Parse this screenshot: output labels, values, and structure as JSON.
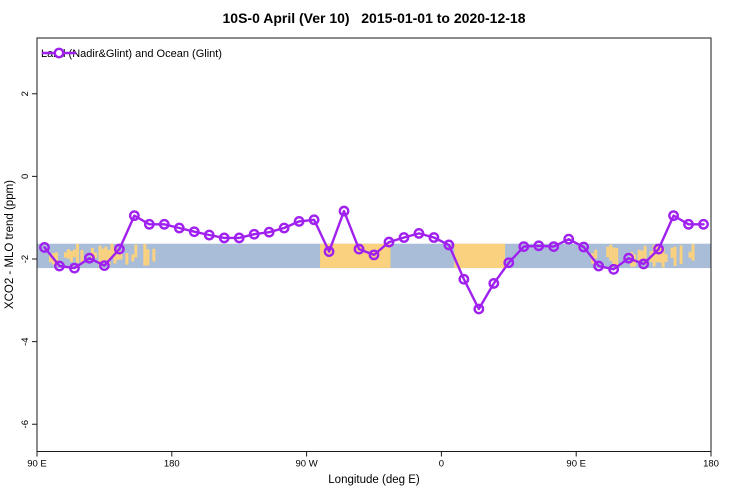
{
  "title": "10S-0 April (Ver 10)   2015-01-01 to 2020-12-18",
  "legend": {
    "label": "Land (Nadir&Glint) and Ocean (Glint)"
  },
  "chart_data": {
    "type": "line",
    "title": "10S-0 April (Ver 10)   2015-01-01 to 2020-12-18",
    "xlabel": "Longitude (deg E)",
    "ylabel": "XCO2 - MLO trend (ppm)",
    "xlim": [
      90,
      540
    ],
    "ylim": [
      -6.66,
      3.35
    ],
    "grid": false,
    "legend_position": "top-left",
    "x_ticks": [
      {
        "value": 90,
        "label": "90 E"
      },
      {
        "value": 180,
        "label": "180"
      },
      {
        "value": 270,
        "label": "90 W"
      },
      {
        "value": 360,
        "label": "0"
      },
      {
        "value": 450,
        "label": "90 E"
      },
      {
        "value": 540,
        "label": "180"
      }
    ],
    "y_ticks": [
      {
        "value": 2,
        "label": "2"
      },
      {
        "value": 0,
        "label": "0"
      },
      {
        "value": -2,
        "label": "-2"
      },
      {
        "value": -4,
        "label": "-4"
      },
      {
        "value": -6,
        "label": "-6"
      }
    ],
    "x": [
      95,
      105,
      115,
      125,
      135,
      145,
      155,
      165,
      175,
      185,
      195,
      205,
      215,
      225,
      235,
      245,
      255,
      265,
      275,
      285,
      295,
      305,
      315,
      325,
      335,
      345,
      355,
      365,
      375,
      385,
      395,
      405,
      415,
      425,
      435,
      445,
      455,
      465,
      475,
      485,
      495,
      505,
      515,
      525,
      535
    ],
    "series": [
      {
        "name": "Land (Nadir&Glint) and Ocean (Glint)",
        "color": "#A020F0",
        "marker": "open-circle",
        "values": [
          -1.72,
          -2.17,
          -2.22,
          -1.98,
          -2.16,
          -1.76,
          -0.95,
          -1.16,
          -1.16,
          -1.25,
          -1.34,
          -1.42,
          -1.49,
          -1.49,
          -1.4,
          -1.35,
          -1.25,
          -1.09,
          -1.05,
          -1.82,
          -0.84,
          -1.76,
          -1.9,
          -1.59,
          -1.48,
          -1.38,
          -1.48,
          -1.66,
          -2.49,
          -3.21,
          -2.59,
          -2.09,
          -1.7,
          -1.68,
          -1.7,
          -1.52,
          -1.71,
          -2.17,
          -2.25,
          -1.98,
          -2.12,
          -1.76,
          -0.95,
          -1.16,
          -1.16
        ]
      }
    ],
    "surface_band": {
      "y_top": -1.63,
      "y_bottom": -2.22,
      "ocean_color": "#A9BDD8",
      "land_color": "#FAD17E",
      "land_solid": [
        [
          279,
          326
        ],
        [
          368.5,
          402.5
        ]
      ],
      "land_speckle": [
        [
          98,
          104
        ],
        [
          108,
          118
        ],
        [
          119,
          123
        ],
        [
          126,
          129
        ],
        [
          131,
          151
        ],
        [
          153,
          157
        ],
        [
          159,
          168
        ],
        [
          269.5,
          271
        ],
        [
          458,
          464
        ],
        [
          468,
          478
        ],
        [
          479,
          483
        ],
        [
          486,
          489
        ],
        [
          491,
          511
        ],
        [
          513,
          517
        ],
        [
          519,
          528
        ]
      ]
    },
    "axis_color": "#1a1a1a"
  }
}
